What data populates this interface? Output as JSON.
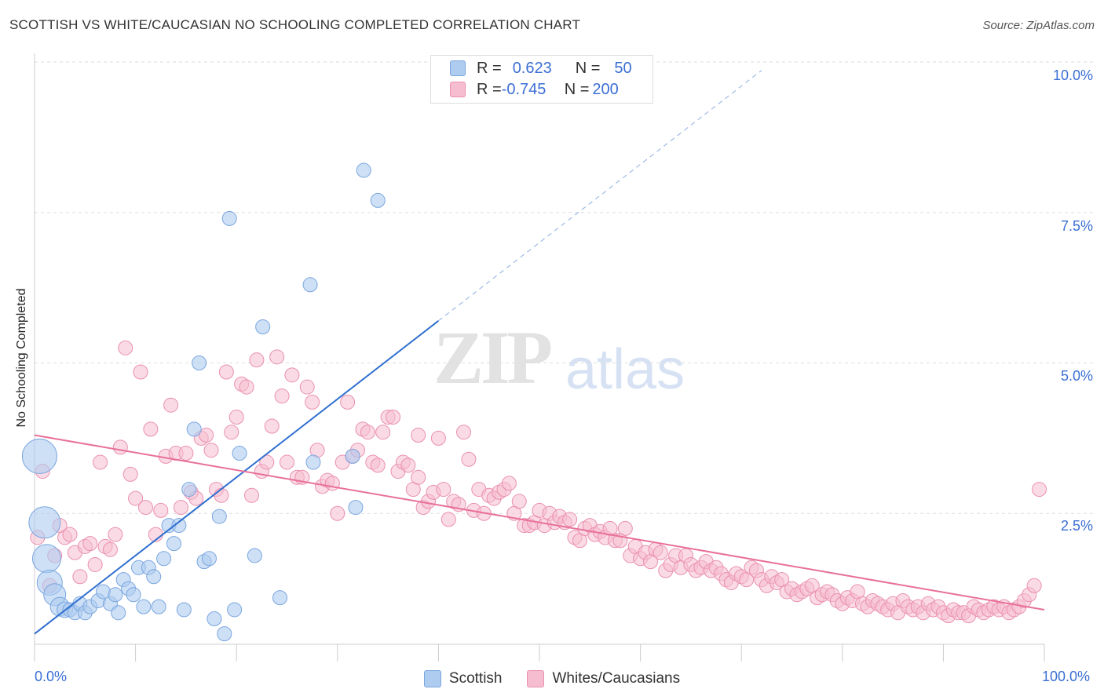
{
  "title": "SCOTTISH VS WHITE/CAUCASIAN NO SCHOOLING COMPLETED CORRELATION CHART",
  "source": "Source: ZipAtlas.com",
  "watermark": {
    "zip": "ZIP",
    "atlas": "atlas"
  },
  "colors": {
    "blue_fill": "#aecbf0",
    "blue_stroke": "#7aa6df",
    "blue_line": "#2f6fcf",
    "pink_fill": "#f6bdd0",
    "pink_stroke": "#ea8fb0",
    "pink_line": "#e8709a",
    "grid": "#dddddd",
    "axis_text": "#3b6fd4"
  },
  "legend": {
    "rows": [
      {
        "r_label": "R = ",
        "r_value": "0.623",
        "n_label": "N = ",
        "n_value": "50"
      },
      {
        "r_label": "R = ",
        "r_value": "-0.745",
        "n_label": "N = ",
        "n_value": "200"
      }
    ]
  },
  "chart_data": {
    "type": "scatter",
    "ylabel": "No Schooling Completed",
    "xlim": [
      0,
      100
    ],
    "ylim": [
      0,
      10
    ],
    "x_tick_labels": {
      "min": "0.0%",
      "max": "100.0%"
    },
    "y_ticks": [
      {
        "value": 2.5,
        "label": "2.5%"
      },
      {
        "value": 5.0,
        "label": "5.0%"
      },
      {
        "value": 7.5,
        "label": "7.5%"
      },
      {
        "value": 10.0,
        "label": "10.0%"
      }
    ],
    "series": [
      {
        "name": "Scottish",
        "color": "blue",
        "trend": {
          "x0": 0,
          "y0": 0.5,
          "x1": 40,
          "y1": 5.7,
          "dashed_to_x": 72
        },
        "points": [
          [
            0.5,
            3.45
          ],
          [
            1.0,
            2.35
          ],
          [
            1.2,
            1.75
          ],
          [
            1.5,
            1.35
          ],
          [
            2.0,
            1.15
          ],
          [
            2.5,
            0.95
          ],
          [
            3.0,
            0.9
          ],
          [
            3.5,
            0.9
          ],
          [
            4.0,
            0.85
          ],
          [
            4.5,
            1.0
          ],
          [
            5.0,
            0.85
          ],
          [
            5.5,
            0.95
          ],
          [
            6.3,
            1.05
          ],
          [
            6.8,
            1.2
          ],
          [
            7.5,
            1.0
          ],
          [
            8.0,
            1.15
          ],
          [
            8.3,
            0.85
          ],
          [
            8.8,
            1.4
          ],
          [
            9.3,
            1.25
          ],
          [
            9.8,
            1.15
          ],
          [
            10.3,
            1.6
          ],
          [
            10.8,
            0.95
          ],
          [
            11.3,
            1.6
          ],
          [
            11.8,
            1.45
          ],
          [
            12.3,
            0.95
          ],
          [
            12.8,
            1.75
          ],
          [
            13.3,
            2.3
          ],
          [
            13.8,
            2.0
          ],
          [
            14.3,
            2.3
          ],
          [
            14.8,
            0.9
          ],
          [
            15.3,
            2.9
          ],
          [
            15.8,
            3.9
          ],
          [
            16.3,
            5.0
          ],
          [
            16.8,
            1.7
          ],
          [
            17.3,
            1.75
          ],
          [
            17.8,
            0.75
          ],
          [
            18.3,
            2.45
          ],
          [
            18.8,
            0.5
          ],
          [
            19.3,
            7.4
          ],
          [
            19.8,
            0.9
          ],
          [
            20.3,
            3.5
          ],
          [
            21.8,
            1.8
          ],
          [
            22.6,
            5.6
          ],
          [
            24.3,
            1.1
          ],
          [
            27.3,
            6.3
          ],
          [
            27.6,
            3.35
          ],
          [
            31.5,
            3.45
          ],
          [
            31.8,
            2.6
          ],
          [
            32.6,
            8.2
          ],
          [
            34.0,
            7.7
          ]
        ],
        "sizes": [
          22,
          20,
          18,
          16,
          14,
          12,
          10,
          9,
          9,
          9,
          9,
          9,
          9,
          9,
          9,
          9,
          9,
          9,
          9,
          9,
          9,
          9,
          9,
          9,
          9,
          9,
          9,
          9,
          9,
          9,
          9,
          9,
          9,
          9,
          9,
          9,
          9,
          9,
          9,
          9,
          9,
          9,
          9,
          9,
          9,
          9,
          9,
          9,
          9,
          9
        ]
      },
      {
        "name": "Whites/Caucasians",
        "color": "pink",
        "trend": {
          "x0": 0,
          "y0": 3.8,
          "x1": 100,
          "y1": 0.9
        },
        "points": [
          [
            0.3,
            2.1
          ],
          [
            0.8,
            3.2
          ],
          [
            1.5,
            1.3
          ],
          [
            2.0,
            1.8
          ],
          [
            2.5,
            2.3
          ],
          [
            3.0,
            2.1
          ],
          [
            3.5,
            2.15
          ],
          [
            4.0,
            1.85
          ],
          [
            4.5,
            1.45
          ],
          [
            5.0,
            1.95
          ],
          [
            5.5,
            2.0
          ],
          [
            6.0,
            1.65
          ],
          [
            6.5,
            3.35
          ],
          [
            7.0,
            1.95
          ],
          [
            7.5,
            1.9
          ],
          [
            8.0,
            2.15
          ],
          [
            8.5,
            3.6
          ],
          [
            9.0,
            5.25
          ],
          [
            9.5,
            3.15
          ],
          [
            10.0,
            2.75
          ],
          [
            10.5,
            4.85
          ],
          [
            11.0,
            2.6
          ],
          [
            11.5,
            3.9
          ],
          [
            12.0,
            2.15
          ],
          [
            12.5,
            2.55
          ],
          [
            13.0,
            3.45
          ],
          [
            13.5,
            4.3
          ],
          [
            14.0,
            3.5
          ],
          [
            14.5,
            2.6
          ],
          [
            15.0,
            3.5
          ],
          [
            15.5,
            2.85
          ],
          [
            16.0,
            2.75
          ],
          [
            16.5,
            3.75
          ],
          [
            17.0,
            3.8
          ],
          [
            17.5,
            3.55
          ],
          [
            18.0,
            2.9
          ],
          [
            18.5,
            2.8
          ],
          [
            19.0,
            4.85
          ],
          [
            19.5,
            3.85
          ],
          [
            20.0,
            4.1
          ],
          [
            20.5,
            4.65
          ],
          [
            21.0,
            4.6
          ],
          [
            21.5,
            2.8
          ],
          [
            22.0,
            5.05
          ],
          [
            22.5,
            3.2
          ],
          [
            23.0,
            3.35
          ],
          [
            23.5,
            3.95
          ],
          [
            24.0,
            5.1
          ],
          [
            24.5,
            4.45
          ],
          [
            25.0,
            3.35
          ],
          [
            25.5,
            4.8
          ],
          [
            26.0,
            3.1
          ],
          [
            26.5,
            3.1
          ],
          [
            27.0,
            4.6
          ],
          [
            27.5,
            4.35
          ],
          [
            28.0,
            3.55
          ],
          [
            28.5,
            2.95
          ],
          [
            29.0,
            3.05
          ],
          [
            29.5,
            3.0
          ],
          [
            30.0,
            2.5
          ],
          [
            30.5,
            3.35
          ],
          [
            31.0,
            4.35
          ],
          [
            31.5,
            3.45
          ],
          [
            32.0,
            3.55
          ],
          [
            32.5,
            3.9
          ],
          [
            33.0,
            3.85
          ],
          [
            33.5,
            3.35
          ],
          [
            34.0,
            3.3
          ],
          [
            34.5,
            3.85
          ],
          [
            35.0,
            4.1
          ],
          [
            35.5,
            4.1
          ],
          [
            36.0,
            3.2
          ],
          [
            36.5,
            3.35
          ],
          [
            37.0,
            3.3
          ],
          [
            37.5,
            2.9
          ],
          [
            38.0,
            3.1
          ],
          [
            38.5,
            2.6
          ],
          [
            39.0,
            2.7
          ],
          [
            39.5,
            2.85
          ],
          [
            40.0,
            3.75
          ],
          [
            40.5,
            2.9
          ],
          [
            41.0,
            2.4
          ],
          [
            41.5,
            2.7
          ],
          [
            42.0,
            2.65
          ],
          [
            42.5,
            3.85
          ],
          [
            43.0,
            3.4
          ],
          [
            43.5,
            2.55
          ],
          [
            44.0,
            2.9
          ],
          [
            44.5,
            2.5
          ],
          [
            45.0,
            2.8
          ],
          [
            45.5,
            2.75
          ],
          [
            46.0,
            2.85
          ],
          [
            46.5,
            2.9
          ],
          [
            47.0,
            3.0
          ],
          [
            47.5,
            2.5
          ],
          [
            48.0,
            2.7
          ],
          [
            48.5,
            2.3
          ],
          [
            49.0,
            2.3
          ],
          [
            49.5,
            2.35
          ],
          [
            50.0,
            2.55
          ],
          [
            50.5,
            2.3
          ],
          [
            51.0,
            2.5
          ],
          [
            51.5,
            2.35
          ],
          [
            52.0,
            2.45
          ],
          [
            52.5,
            2.35
          ],
          [
            53.0,
            2.4
          ],
          [
            53.5,
            2.1
          ],
          [
            54.0,
            2.05
          ],
          [
            54.5,
            2.25
          ],
          [
            55.0,
            2.3
          ],
          [
            55.5,
            2.15
          ],
          [
            56.0,
            2.2
          ],
          [
            56.5,
            2.1
          ],
          [
            57.0,
            2.25
          ],
          [
            57.5,
            2.05
          ],
          [
            58.0,
            2.05
          ],
          [
            58.5,
            2.25
          ],
          [
            59.0,
            1.8
          ],
          [
            59.5,
            1.95
          ],
          [
            60.0,
            1.75
          ],
          [
            60.5,
            1.85
          ],
          [
            61.0,
            1.7
          ],
          [
            61.5,
            1.9
          ],
          [
            62.0,
            1.85
          ],
          [
            62.5,
            1.55
          ],
          [
            63.0,
            1.65
          ],
          [
            63.5,
            1.8
          ],
          [
            64.0,
            1.6
          ],
          [
            64.5,
            1.8
          ],
          [
            65.0,
            1.65
          ],
          [
            65.5,
            1.55
          ],
          [
            66.0,
            1.6
          ],
          [
            66.5,
            1.7
          ],
          [
            67.0,
            1.55
          ],
          [
            67.5,
            1.6
          ],
          [
            68.0,
            1.5
          ],
          [
            68.5,
            1.4
          ],
          [
            69.0,
            1.35
          ],
          [
            69.5,
            1.5
          ],
          [
            70.0,
            1.45
          ],
          [
            70.5,
            1.4
          ],
          [
            71.0,
            1.6
          ],
          [
            71.5,
            1.55
          ],
          [
            72.0,
            1.4
          ],
          [
            72.5,
            1.3
          ],
          [
            73.0,
            1.45
          ],
          [
            73.5,
            1.35
          ],
          [
            74.0,
            1.4
          ],
          [
            74.5,
            1.2
          ],
          [
            75.0,
            1.25
          ],
          [
            75.5,
            1.15
          ],
          [
            76.0,
            1.2
          ],
          [
            76.5,
            1.25
          ],
          [
            77.0,
            1.3
          ],
          [
            77.5,
            1.1
          ],
          [
            78.0,
            1.15
          ],
          [
            78.5,
            1.2
          ],
          [
            79.0,
            1.15
          ],
          [
            79.5,
            1.05
          ],
          [
            80.0,
            1.0
          ],
          [
            80.5,
            1.1
          ],
          [
            81.0,
            1.05
          ],
          [
            81.5,
            1.2
          ],
          [
            82.0,
            1.0
          ],
          [
            82.5,
            0.95
          ],
          [
            83.0,
            1.05
          ],
          [
            83.5,
            1.0
          ],
          [
            84.0,
            0.95
          ],
          [
            84.5,
            0.9
          ],
          [
            85.0,
            1.0
          ],
          [
            85.5,
            0.85
          ],
          [
            86.0,
            1.05
          ],
          [
            86.5,
            0.95
          ],
          [
            87.0,
            0.9
          ],
          [
            87.5,
            0.95
          ],
          [
            88.0,
            0.85
          ],
          [
            88.5,
            1.0
          ],
          [
            89.0,
            0.9
          ],
          [
            89.5,
            0.95
          ],
          [
            90.0,
            0.85
          ],
          [
            90.5,
            0.8
          ],
          [
            91.0,
            0.9
          ],
          [
            91.5,
            0.85
          ],
          [
            92.0,
            0.85
          ],
          [
            92.5,
            0.8
          ],
          [
            93.0,
            0.95
          ],
          [
            93.5,
            0.9
          ],
          [
            94.0,
            0.85
          ],
          [
            94.5,
            0.9
          ],
          [
            95.0,
            0.95
          ],
          [
            95.5,
            0.9
          ],
          [
            96.0,
            0.95
          ],
          [
            96.5,
            0.85
          ],
          [
            97.0,
            0.9
          ],
          [
            97.5,
            0.95
          ],
          [
            98.0,
            1.05
          ],
          [
            98.5,
            1.15
          ],
          [
            99.0,
            1.3
          ],
          [
            99.5,
            2.9
          ],
          [
            38.0,
            3.8
          ]
        ]
      }
    ]
  }
}
